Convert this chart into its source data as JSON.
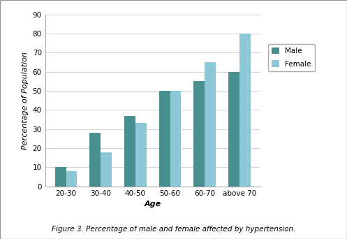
{
  "categories": [
    "20-30",
    "30-40",
    "40-50",
    "50-60",
    "60-70",
    "above 70"
  ],
  "male_values": [
    10,
    28,
    37,
    50,
    55,
    60
  ],
  "female_values": [
    8,
    18,
    33,
    50,
    65,
    80
  ],
  "male_color": "#4a8f8f",
  "female_color": "#8dc8d8",
  "ylabel": "Percentage of Population",
  "xlabel": "Age",
  "ylim": [
    0,
    90
  ],
  "yticks": [
    0,
    10,
    20,
    30,
    40,
    50,
    60,
    70,
    80,
    90
  ],
  "legend_labels": [
    "Male",
    "Female"
  ],
  "caption": "Figure 3. Percentage of male and female affected by hypertension.",
  "bar_width": 0.32,
  "axis_fontsize": 8,
  "tick_fontsize": 7.5,
  "legend_fontsize": 7.5
}
